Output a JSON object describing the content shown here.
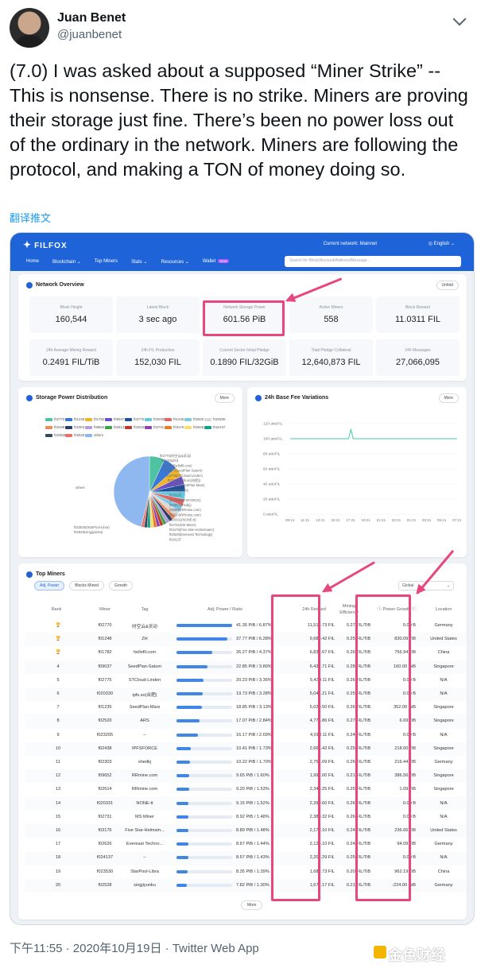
{
  "tweet": {
    "author_name": "Juan Benet",
    "author_handle": "@juanbenet",
    "text": "(7.0) I was asked about a supposed “Miner Strike” -- This is nonsense. There is no strike. Miners are proving their storage just fine. There’s been no power loss out of the ordinary in the network. Miners are following the protocol, and making a TON of money doing so.",
    "translate": "翻译推文",
    "footer": "下午11:55 · 2020年10月19日 · Twitter Web App"
  },
  "watermark": "金色财经",
  "filfox": {
    "logo": "FILFOX",
    "network": "Current network: Mainnet",
    "lang": "English",
    "menu": [
      "Home",
      "Blockchain",
      "Top Miners",
      "Stats",
      "Resources",
      "Wallet"
    ],
    "wallet_badge": "NEW",
    "search_placeholder": "Search for Block/Account/Address/Message...",
    "overview_title": "Network Overview",
    "unfold": "Unfold",
    "stats": [
      {
        "label": "Block Height",
        "value": "160,544"
      },
      {
        "label": "Latest Block",
        "value": "3 sec ago"
      },
      {
        "label": "Network Storage Power",
        "value": "601.56 PiB"
      },
      {
        "label": "Active Miners",
        "value": "558"
      },
      {
        "label": "Block Reward",
        "value": "11.0311 FIL"
      },
      {
        "label": "24h Average Mining Reward",
        "value": "0.2491 FIL/TiB"
      },
      {
        "label": "24h FIL Production",
        "value": "152,030 FIL"
      },
      {
        "label": "Current Sector Initial Pledge",
        "value": "0.1890 FIL/32GiB"
      },
      {
        "label": "Total Pledge Collateral",
        "value": "12,640,873 FIL"
      },
      {
        "label": "24h Messages",
        "value": "27,066,095"
      }
    ],
    "spd_title": "Storage Power Distribution",
    "fee_title": "24h Base Fee Variations",
    "more": "More",
    "legend": [
      {
        "name": "f02770",
        "color": "#4fc3a1"
      },
      {
        "name": "f01248",
        "color": "#3a78d6"
      },
      {
        "name": "f01782",
        "color": "#f0b429"
      },
      {
        "name": "f09037",
        "color": "#6a4fc9"
      },
      {
        "name": "f02775",
        "color": "#1e4f9c"
      },
      {
        "name": "f020330",
        "color": "#5fc9e0"
      },
      {
        "name": "f01235",
        "color": "#e06666"
      },
      {
        "name": "f02520",
        "color": "#7ec8e3"
      },
      {
        "name": "f023205",
        "color": "#d9d9d9"
      },
      {
        "name": "f02438",
        "color": "#f08a5d"
      },
      {
        "name": "f02303",
        "color": "#2a3d66"
      },
      {
        "name": "f09652",
        "color": "#b39ddb"
      },
      {
        "name": "f02614",
        "color": "#3fa34d"
      },
      {
        "name": "f020331",
        "color": "#c0392b"
      },
      {
        "name": "f02731",
        "color": "#8e44ad"
      },
      {
        "name": "f03176",
        "color": "#e67e22"
      },
      {
        "name": "f02626",
        "color": "#f7dc6f"
      },
      {
        "name": "f024137",
        "color": "#16a085"
      },
      {
        "name": "f023530",
        "color": "#34495e"
      },
      {
        "name": "f02528",
        "color": "#ec7063"
      },
      {
        "name": "others",
        "color": "#8fb8f0"
      }
    ],
    "pie_labels": [
      "f02770(时空云&灵动)",
      "f01248(ZH)",
      "f01782(hellofil.com)",
      "f09037(SeedPlan-Saturn)",
      "f02775(STCloud-Linden)",
      "f020330(ipfs.so(合肥))",
      "f01235(SeedPlan-Mars)",
      "f02520(ARS)",
      "f023205",
      "f02438(IPFSFORCE)",
      "f02303(shedkj)",
      "f09652(RRmine.com)",
      "f02614(RRmine.com)",
      "f020331(NONE-tt)",
      "f02731(MS Miner)",
      "f03176(Five Star-Helmsmann)",
      "f02626(Evereast Technology)",
      "f024137",
      "f023530(StarPool-Libra)",
      "f02528(xingjiyunku)",
      "others"
    ],
    "fee_y": [
      "120 attoFIL",
      "100 attoFIL",
      "80 attoFIL",
      "60 attoFIL",
      "40 attoFIL",
      "20 attoFIL",
      "0 attoFIL"
    ],
    "fee_x": [
      "09:21",
      "11:21",
      "13:21",
      "15:21",
      "17:21",
      "19:21",
      "21:21",
      "23:21",
      "01:21",
      "03:21",
      "05:21",
      "07:21"
    ],
    "tm_title": "Top Miners",
    "tm_tabs": [
      "Adj. Power",
      "Blocks Mined",
      "Growth"
    ],
    "tm_select": "Global",
    "tm_headers": [
      "Rank",
      "Miner",
      "Tag",
      "Adj. Power / Ratio",
      "24h Reward",
      "Mining Efficiency",
      "Power Growth",
      "Location"
    ],
    "tm_more": "More",
    "rows": [
      {
        "rank": "🏆",
        "miner": "f02770",
        "tag": "时空云&灵动",
        "power": "41.35 PiB / 6.87%",
        "pct": 6.87,
        "reward": "11,512.73 FIL",
        "eff": "0.27 FIL/TiB",
        "growth": "0.00 B",
        "loc": "Germany"
      },
      {
        "rank": "🏆",
        "miner": "f01248",
        "tag": "ZH",
        "power": "37.77 PiB / 6.28%",
        "pct": 6.28,
        "reward": "9,683.42 FIL",
        "eff": "0.25 FIL/TiB",
        "growth": "830.09 TiB",
        "loc": "United States"
      },
      {
        "rank": "🏆",
        "miner": "f01782",
        "tag": "hellofil.com",
        "power": "26.27 PiB / 4.37%",
        "pct": 4.37,
        "reward": "6,832.67 FIL",
        "eff": "0.26 FIL/TiB",
        "growth": "756.94 TiB",
        "loc": "China"
      },
      {
        "rank": "4",
        "miner": "f09037",
        "tag": "SeedPlan-Saturn",
        "power": "22.85 PiB / 3.80%",
        "pct": 3.8,
        "reward": "6,437.71 FIL",
        "eff": "0.28 FIL/TiB",
        "growth": "160.00 GiB",
        "loc": "Singapore"
      },
      {
        "rank": "5",
        "miner": "f02775",
        "tag": "STCloud-Linden",
        "power": "20.23 PiB / 3.36%",
        "pct": 3.36,
        "reward": "5,439.11 FIL",
        "eff": "0.26 FIL/TiB",
        "growth": "0.00 B",
        "loc": "N/A"
      },
      {
        "rank": "6",
        "miner": "f020330",
        "tag": "ipfs.so(合肥)",
        "power": "19.73 PiB / 3.28%",
        "pct": 3.28,
        "reward": "5,041.21 FIL",
        "eff": "0.25 FIL/TiB",
        "growth": "0.00 B",
        "loc": "N/A"
      },
      {
        "rank": "7",
        "miner": "f01235",
        "tag": "SeedPlan-Mars",
        "power": "18.85 PiB / 3.13%",
        "pct": 3.13,
        "reward": "5,029.50 FIL",
        "eff": "0.26 FIL/TiB",
        "growth": "352.00 GiB",
        "loc": "Singapore"
      },
      {
        "rank": "8",
        "miner": "f02520",
        "tag": "ARS",
        "power": "17.07 PiB / 2.84%",
        "pct": 2.84,
        "reward": "4,774.86 FIL",
        "eff": "0.27 FIL/TiB",
        "growth": "6.69 TiB",
        "loc": "Singapore"
      },
      {
        "rank": "9",
        "miner": "f023205",
        "tag": "--",
        "power": "16.17 PiB / 2.69%",
        "pct": 2.69,
        "reward": "4,018.11 FIL",
        "eff": "0.24 FIL/TiB",
        "growth": "0.00 B",
        "loc": "N/A"
      },
      {
        "rank": "10",
        "miner": "f02438",
        "tag": "IPFSFORCE",
        "power": "10.41 PiB / 1.73%",
        "pct": 1.73,
        "reward": "2,664.42 FIL",
        "eff": "0.25 FIL/TiB",
        "growth": "218.00 TiB",
        "loc": "Singapore"
      },
      {
        "rank": "11",
        "miner": "f02303",
        "tag": "shedkj",
        "power": "10.22 PiB / 1.70%",
        "pct": 1.7,
        "reward": "2,751.09 FIL",
        "eff": "0.26 FIL/TiB",
        "growth": "216.44 TiB",
        "loc": "Germany"
      },
      {
        "rank": "12",
        "miner": "f09652",
        "tag": "RRmine.com",
        "power": "9.65 PiB / 1.60%",
        "pct": 1.6,
        "reward": "1,992.00 FIL",
        "eff": "0.21 FIL/TiB",
        "growth": "386.56 TiB",
        "loc": "Singapore"
      },
      {
        "rank": "13",
        "miner": "f02614",
        "tag": "RRmine.com",
        "power": "9.20 PiB / 1.53%",
        "pct": 1.53,
        "reward": "2,343.25 FIL",
        "eff": "0.25 FIL/TiB",
        "growth": "1.09 TiB",
        "loc": "Singapore"
      },
      {
        "rank": "14",
        "miner": "f020331",
        "tag": "NONE-tt",
        "power": "9.15 PiB / 1.52%",
        "pct": 1.52,
        "reward": "2,399.60 FIL",
        "eff": "0.26 FIL/TiB",
        "growth": "0.00 B",
        "loc": "N/A"
      },
      {
        "rank": "15",
        "miner": "f02731",
        "tag": "MS Miner",
        "power": "8.92 PiB / 1.48%",
        "pct": 1.48,
        "reward": "2,389.32 FIL",
        "eff": "0.26 FIL/TiB",
        "growth": "0.00 B",
        "loc": "N/A"
      },
      {
        "rank": "16",
        "miner": "f03176",
        "tag": "Five Star-Helmsm...",
        "power": "8.89 PiB / 1.48%",
        "pct": 1.48,
        "reward": "2,178.10 FIL",
        "eff": "0.24 FIL/TiB",
        "growth": "236.66 TiB",
        "loc": "United States"
      },
      {
        "rank": "17",
        "miner": "f02626",
        "tag": "Evereast Techno...",
        "power": "8.67 PiB / 1.44%",
        "pct": 1.44,
        "reward": "2,124.10 FIL",
        "eff": "0.24 FIL/TiB",
        "growth": "94.09 TiB",
        "loc": "Germany"
      },
      {
        "rank": "18",
        "miner": "f024137",
        "tag": "--",
        "power": "8.57 PiB / 1.43%",
        "pct": 1.43,
        "reward": "2,202.29 FIL",
        "eff": "0.25 FIL/TiB",
        "growth": "0.00 B",
        "loc": "N/A"
      },
      {
        "rank": "19",
        "miner": "f023530",
        "tag": "StarPool-Libra",
        "power": "8.35 PiB / 1.39%",
        "pct": 1.39,
        "reward": "1,682.73 FIL",
        "eff": "0.20 FIL/TiB",
        "growth": "962.19 TiB",
        "loc": "China"
      },
      {
        "rank": "20",
        "miner": "f02528",
        "tag": "xingjiyunku",
        "power": "7.82 PiB / 1.30%",
        "pct": 1.3,
        "reward": "1,672.17 FIL",
        "eff": "0.21 FIL/TiB",
        "growth": "-224.00 GiB",
        "loc": "Germany"
      }
    ]
  },
  "chart_data": [
    {
      "type": "pie",
      "title": "Storage Power Distribution",
      "categories": [
        "f02770",
        "f01248",
        "f01782",
        "f09037",
        "f02775",
        "f020330",
        "f01235",
        "f02520",
        "f023205",
        "f02438",
        "f02303",
        "f09652",
        "f02614",
        "f020331",
        "f02731",
        "f03176",
        "f02626",
        "f024137",
        "f023530",
        "f02528",
        "others"
      ],
      "values": [
        6.87,
        6.28,
        4.37,
        3.8,
        3.36,
        3.28,
        3.13,
        2.84,
        2.69,
        1.73,
        1.7,
        1.6,
        1.53,
        1.52,
        1.48,
        1.48,
        1.44,
        1.43,
        1.39,
        1.3,
        45.79
      ]
    },
    {
      "type": "line",
      "title": "24h Base Fee Variations",
      "x": [
        "09:21",
        "11:21",
        "13:21",
        "15:21",
        "17:21",
        "19:21",
        "21:21",
        "23:21",
        "01:21",
        "03:21",
        "05:21",
        "07:21"
      ],
      "series": [
        {
          "values": [
            100,
            100,
            100,
            100,
            100,
            100,
            100,
            100,
            100,
            100,
            100,
            100
          ]
        }
      ],
      "spike": {
        "x": "17:21",
        "y": 112
      },
      "ylim": [
        0,
        120
      ],
      "ylabel": "attoFIL"
    }
  ]
}
